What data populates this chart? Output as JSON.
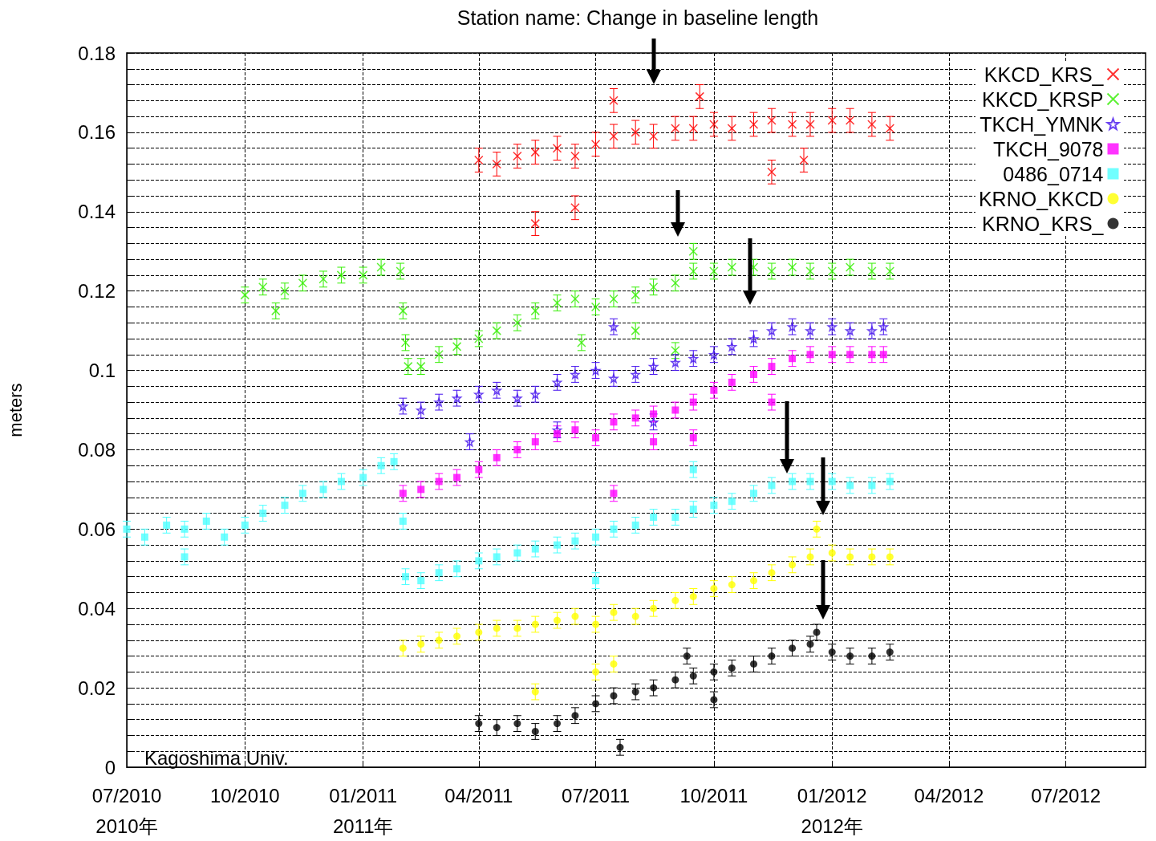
{
  "chart_data": {
    "type": "scatter",
    "title": "Station name: Change in baseline length",
    "ylabel": "meters",
    "annotations": [
      "Kagoshima Univ."
    ],
    "xlim": [
      "2010-07-01",
      "2012-09-01"
    ],
    "xticks": [
      {
        "value": "2010-07-01",
        "label": "07/2010\n2010年"
      },
      {
        "value": "2010-10-01",
        "label": "10/2010"
      },
      {
        "value": "2011-01-01",
        "label": "01/2011\n2011年"
      },
      {
        "value": "2011-04-01",
        "label": "04/2011"
      },
      {
        "value": "2011-07-01",
        "label": "07/2011"
      },
      {
        "value": "2011-10-01",
        "label": "10/2011"
      },
      {
        "value": "2012-01-01",
        "label": "01/2012\n2012年"
      },
      {
        "value": "2012-04-01",
        "label": "04/2012"
      },
      {
        "value": "2012-07-01",
        "label": "07/2012"
      }
    ],
    "ylim": [
      0,
      0.18
    ],
    "yticks": [
      0,
      {
        "value": 0.004,
        "label": null
      },
      {
        "value": 0.008,
        "label": null
      },
      {
        "value": 0.012,
        "label": null
      },
      {
        "value": 0.016,
        "label": null
      },
      0.02,
      {
        "value": 0.024,
        "label": null
      },
      {
        "value": 0.028,
        "label": null
      },
      {
        "value": 0.032,
        "label": null
      },
      {
        "value": 0.036,
        "label": null
      },
      0.04,
      {
        "value": 0.044,
        "label": null
      },
      {
        "value": 0.048,
        "label": null
      },
      {
        "value": 0.052,
        "label": null
      },
      {
        "value": 0.056,
        "label": null
      },
      0.06,
      {
        "value": 0.064,
        "label": null
      },
      {
        "value": 0.068,
        "label": null
      },
      {
        "value": 0.072,
        "label": null
      },
      {
        "value": 0.076,
        "label": null
      },
      0.08,
      {
        "value": 0.084,
        "label": null
      },
      {
        "value": 0.088,
        "label": null
      },
      {
        "value": 0.092,
        "label": null
      },
      {
        "value": 0.096,
        "label": null
      },
      0.1,
      {
        "value": 0.104,
        "label": null
      },
      {
        "value": 0.108,
        "label": null
      },
      {
        "value": 0.112,
        "label": null
      },
      {
        "value": 0.116,
        "label": null
      },
      0.12,
      {
        "value": 0.124,
        "label": null
      },
      {
        "value": 0.128,
        "label": null
      },
      {
        "value": 0.132,
        "label": null
      },
      {
        "value": 0.136,
        "label": null
      },
      0.14,
      {
        "value": 0.144,
        "label": null
      },
      {
        "value": 0.148,
        "label": null
      },
      {
        "value": 0.152,
        "label": null
      },
      {
        "value": 0.156,
        "label": null
      },
      0.16,
      {
        "value": 0.164,
        "label": null
      },
      {
        "value": 0.168,
        "label": null
      },
      {
        "value": 0.172,
        "label": null
      },
      {
        "value": 0.176,
        "label": null
      },
      0.18
    ],
    "grid": true,
    "legend": "top right",
    "series": [
      {
        "name": "KKCD_KRS_",
        "color": "#ff0000",
        "marker": "cross",
        "x": [
          "2011-04-01",
          "2011-04-15",
          "2011-05-01",
          "2011-05-15",
          "2011-06-01",
          "2011-06-15",
          "2011-07-01",
          "2011-07-15",
          "2011-08-01",
          "2011-08-15",
          "2011-09-01",
          "2011-09-15",
          "2011-10-01",
          "2011-10-15",
          "2011-11-01",
          "2011-11-15",
          "2011-12-01",
          "2011-12-15",
          "2012-01-01",
          "2012-01-15",
          "2012-02-01",
          "2012-02-15",
          "2011-05-15",
          "2011-06-15",
          "2011-07-15",
          "2011-09-20",
          "2011-11-15",
          "2011-12-10"
        ],
        "values": [
          0.153,
          0.152,
          0.154,
          0.155,
          0.156,
          0.154,
          0.157,
          0.159,
          0.16,
          0.159,
          0.161,
          0.161,
          0.162,
          0.161,
          0.162,
          0.163,
          0.162,
          0.162,
          0.163,
          0.163,
          0.162,
          0.161,
          0.137,
          0.141,
          0.168,
          0.169,
          0.15,
          0.153
        ],
        "errors": [
          0.003,
          0.003,
          0.003,
          0.003,
          0.003,
          0.003,
          0.003,
          0.003,
          0.003,
          0.003,
          0.003,
          0.003,
          0.003,
          0.003,
          0.003,
          0.003,
          0.003,
          0.003,
          0.003,
          0.003,
          0.003,
          0.003,
          0.003,
          0.003,
          0.003,
          0.003,
          0.003,
          0.003
        ]
      },
      {
        "name": "KKCD_KRSP",
        "color": "#33ee00",
        "marker": "cross",
        "x": [
          "2010-10-01",
          "2010-10-15",
          "2010-11-01",
          "2010-11-15",
          "2010-12-01",
          "2010-12-15",
          "2011-01-01",
          "2011-01-15",
          "2011-01-30",
          "2010-10-25",
          "2011-02-01",
          "2011-02-03",
          "2011-02-05",
          "2011-02-15",
          "2011-03-01",
          "2011-03-15",
          "2011-04-01",
          "2011-04-15",
          "2011-05-01",
          "2011-05-15",
          "2011-06-01",
          "2011-06-15",
          "2011-07-01",
          "2011-07-15",
          "2011-08-01",
          "2011-08-15",
          "2011-09-01",
          "2011-09-15",
          "2011-10-01",
          "2011-10-15",
          "2011-11-01",
          "2011-11-15",
          "2011-12-01",
          "2011-12-15",
          "2012-01-01",
          "2012-01-15",
          "2012-02-01",
          "2012-02-15",
          "2011-06-20",
          "2011-08-01",
          "2011-09-01",
          "2011-09-15"
        ],
        "values": [
          0.119,
          0.121,
          0.12,
          0.122,
          0.123,
          0.124,
          0.124,
          0.126,
          0.125,
          0.115,
          0.115,
          0.107,
          0.101,
          0.101,
          0.104,
          0.106,
          0.108,
          0.11,
          0.112,
          0.115,
          0.117,
          0.118,
          0.116,
          0.118,
          0.119,
          0.121,
          0.122,
          0.125,
          0.125,
          0.126,
          0.126,
          0.125,
          0.126,
          0.125,
          0.125,
          0.126,
          0.125,
          0.125,
          0.107,
          0.11,
          0.105,
          0.13
        ],
        "errors": [
          0.002,
          0.002,
          0.002,
          0.002,
          0.002,
          0.002,
          0.002,
          0.002,
          0.002,
          0.002,
          0.002,
          0.002,
          0.002,
          0.002,
          0.002,
          0.002,
          0.002,
          0.002,
          0.002,
          0.002,
          0.002,
          0.002,
          0.002,
          0.002,
          0.002,
          0.002,
          0.002,
          0.002,
          0.002,
          0.002,
          0.002,
          0.002,
          0.002,
          0.002,
          0.002,
          0.002,
          0.002,
          0.002,
          0.002,
          0.002,
          0.002,
          0.002
        ]
      },
      {
        "name": "TKCH_YMNK",
        "color": "#4411ee",
        "marker": "star",
        "x": [
          "2011-02-01",
          "2011-02-15",
          "2011-03-01",
          "2011-03-15",
          "2011-04-01",
          "2011-04-15",
          "2011-05-01",
          "2011-05-15",
          "2011-06-01",
          "2011-06-15",
          "2011-07-01",
          "2011-07-15",
          "2011-08-01",
          "2011-08-15",
          "2011-09-01",
          "2011-09-15",
          "2011-10-01",
          "2011-10-15",
          "2011-11-01",
          "2011-11-15",
          "2011-12-01",
          "2011-12-15",
          "2012-01-01",
          "2012-01-15",
          "2012-02-01",
          "2012-02-10",
          "2011-03-25",
          "2011-06-01",
          "2011-07-15",
          "2011-08-15"
        ],
        "values": [
          0.091,
          0.09,
          0.092,
          0.093,
          0.094,
          0.095,
          0.093,
          0.094,
          0.097,
          0.099,
          0.1,
          0.098,
          0.099,
          0.101,
          0.102,
          0.103,
          0.104,
          0.106,
          0.108,
          0.11,
          0.111,
          0.11,
          0.111,
          0.11,
          0.11,
          0.111,
          0.082,
          0.085,
          0.111,
          0.087
        ],
        "errors": [
          0.002,
          0.002,
          0.002,
          0.002,
          0.002,
          0.002,
          0.002,
          0.002,
          0.002,
          0.002,
          0.002,
          0.002,
          0.002,
          0.002,
          0.002,
          0.002,
          0.002,
          0.002,
          0.002,
          0.002,
          0.002,
          0.002,
          0.002,
          0.002,
          0.002,
          0.002,
          0.002,
          0.002,
          0.002,
          0.002
        ]
      },
      {
        "name": "TKCH_9078",
        "color": "#ff00ff",
        "marker": "square",
        "x": [
          "2011-02-01",
          "2011-02-15",
          "2011-03-01",
          "2011-03-15",
          "2011-04-01",
          "2011-04-15",
          "2011-05-01",
          "2011-05-15",
          "2011-06-01",
          "2011-06-15",
          "2011-07-01",
          "2011-07-15",
          "2011-08-01",
          "2011-08-15",
          "2011-09-01",
          "2011-09-15",
          "2011-10-01",
          "2011-10-15",
          "2011-11-01",
          "2011-11-15",
          "2011-12-01",
          "2011-12-15",
          "2012-01-01",
          "2012-01-15",
          "2012-02-01",
          "2012-02-10",
          "2011-07-15",
          "2011-08-15",
          "2011-09-15",
          "2011-11-15"
        ],
        "values": [
          0.069,
          0.07,
          0.072,
          0.073,
          0.075,
          0.078,
          0.08,
          0.082,
          0.084,
          0.085,
          0.083,
          0.087,
          0.088,
          0.089,
          0.09,
          0.092,
          0.095,
          0.097,
          0.099,
          0.101,
          0.103,
          0.104,
          0.104,
          0.104,
          0.104,
          0.104,
          0.069,
          0.082,
          0.083,
          0.092
        ],
        "errors": [
          0.002,
          0.002,
          0.002,
          0.002,
          0.002,
          0.002,
          0.002,
          0.002,
          0.002,
          0.002,
          0.002,
          0.002,
          0.002,
          0.002,
          0.002,
          0.002,
          0.002,
          0.002,
          0.002,
          0.002,
          0.002,
          0.002,
          0.002,
          0.002,
          0.002,
          0.002,
          0.002,
          0.002,
          0.002,
          0.002
        ]
      },
      {
        "name": "0486_0714",
        "color": "#4dffff",
        "marker": "square",
        "x": [
          "2010-07-01",
          "2010-07-15",
          "2010-08-01",
          "2010-08-15",
          "2010-09-01",
          "2010-09-15",
          "2010-10-01",
          "2010-10-15",
          "2010-11-01",
          "2010-11-15",
          "2010-12-01",
          "2010-12-15",
          "2011-01-01",
          "2011-01-15",
          "2011-01-25",
          "2011-02-01",
          "2011-02-03",
          "2011-02-15",
          "2011-03-01",
          "2011-03-15",
          "2011-04-01",
          "2011-04-15",
          "2011-05-01",
          "2011-05-15",
          "2011-06-01",
          "2011-06-15",
          "2011-07-01",
          "2011-07-15",
          "2011-08-01",
          "2011-08-15",
          "2011-09-01",
          "2011-09-15",
          "2011-10-01",
          "2011-10-15",
          "2011-11-01",
          "2011-11-15",
          "2011-12-01",
          "2011-12-15",
          "2012-01-01",
          "2012-01-15",
          "2012-02-01",
          "2012-02-15",
          "2010-08-15",
          "2011-07-01",
          "2011-09-15"
        ],
        "values": [
          0.06,
          0.058,
          0.061,
          0.06,
          0.062,
          0.058,
          0.061,
          0.064,
          0.066,
          0.069,
          0.07,
          0.072,
          0.073,
          0.076,
          0.077,
          0.062,
          0.048,
          0.047,
          0.049,
          0.05,
          0.052,
          0.053,
          0.054,
          0.055,
          0.056,
          0.057,
          0.058,
          0.06,
          0.061,
          0.063,
          0.063,
          0.065,
          0.066,
          0.067,
          0.069,
          0.071,
          0.072,
          0.072,
          0.072,
          0.071,
          0.071,
          0.072,
          0.053,
          0.047,
          0.075
        ],
        "errors": [
          0.002,
          0.002,
          0.002,
          0.002,
          0.002,
          0.002,
          0.002,
          0.002,
          0.002,
          0.002,
          0.002,
          0.002,
          0.002,
          0.002,
          0.002,
          0.002,
          0.002,
          0.002,
          0.002,
          0.002,
          0.002,
          0.002,
          0.002,
          0.002,
          0.002,
          0.002,
          0.002,
          0.002,
          0.002,
          0.002,
          0.002,
          0.002,
          0.002,
          0.002,
          0.002,
          0.002,
          0.002,
          0.002,
          0.002,
          0.002,
          0.002,
          0.002,
          0.002,
          0.002,
          0.002
        ]
      },
      {
        "name": "KRNO_KKCD",
        "color": "#ffff00",
        "marker": "circle",
        "x": [
          "2011-02-01",
          "2011-02-15",
          "2011-03-01",
          "2011-03-15",
          "2011-04-01",
          "2011-04-15",
          "2011-05-01",
          "2011-05-15",
          "2011-06-01",
          "2011-06-15",
          "2011-07-01",
          "2011-07-15",
          "2011-08-01",
          "2011-08-15",
          "2011-09-01",
          "2011-09-15",
          "2011-10-01",
          "2011-10-15",
          "2011-11-01",
          "2011-11-15",
          "2011-12-01",
          "2011-12-15",
          "2012-01-01",
          "2012-01-15",
          "2012-02-01",
          "2012-02-15",
          "2011-05-15",
          "2011-07-01",
          "2011-07-15",
          "2011-12-20"
        ],
        "values": [
          0.03,
          0.031,
          0.032,
          0.033,
          0.034,
          0.035,
          0.035,
          0.036,
          0.037,
          0.038,
          0.036,
          0.039,
          0.038,
          0.04,
          0.042,
          0.043,
          0.045,
          0.046,
          0.047,
          0.049,
          0.051,
          0.053,
          0.054,
          0.053,
          0.053,
          0.053,
          0.019,
          0.024,
          0.026,
          0.06
        ],
        "errors": [
          0.002,
          0.002,
          0.002,
          0.002,
          0.002,
          0.002,
          0.002,
          0.002,
          0.002,
          0.002,
          0.002,
          0.002,
          0.002,
          0.002,
          0.002,
          0.002,
          0.002,
          0.002,
          0.002,
          0.002,
          0.002,
          0.002,
          0.002,
          0.002,
          0.002,
          0.002,
          0.002,
          0.002,
          0.002,
          0.002
        ]
      },
      {
        "name": "KRNO_KRS_",
        "color": "#000000",
        "marker": "circle",
        "x": [
          "2011-04-01",
          "2011-04-15",
          "2011-05-01",
          "2011-05-15",
          "2011-06-01",
          "2011-06-15",
          "2011-07-01",
          "2011-07-15",
          "2011-08-01",
          "2011-08-15",
          "2011-09-01",
          "2011-09-15",
          "2011-10-01",
          "2011-10-15",
          "2011-11-01",
          "2011-11-15",
          "2011-12-01",
          "2011-12-15",
          "2012-01-01",
          "2012-01-15",
          "2012-02-01",
          "2012-02-15",
          "2011-07-20",
          "2011-12-20",
          "2011-09-10",
          "2011-10-01"
        ],
        "values": [
          0.011,
          0.01,
          0.011,
          0.009,
          0.011,
          0.013,
          0.016,
          0.018,
          0.019,
          0.02,
          0.022,
          0.023,
          0.024,
          0.025,
          0.026,
          0.028,
          0.03,
          0.031,
          0.029,
          0.028,
          0.028,
          0.029,
          0.005,
          0.034,
          0.028,
          0.017
        ],
        "errors": [
          0.002,
          0.002,
          0.002,
          0.002,
          0.002,
          0.002,
          0.002,
          0.002,
          0.002,
          0.002,
          0.002,
          0.002,
          0.002,
          0.002,
          0.002,
          0.002,
          0.002,
          0.002,
          0.002,
          0.002,
          0.002,
          0.002,
          0.002,
          0.002,
          0.002,
          0.002
        ]
      }
    ]
  }
}
